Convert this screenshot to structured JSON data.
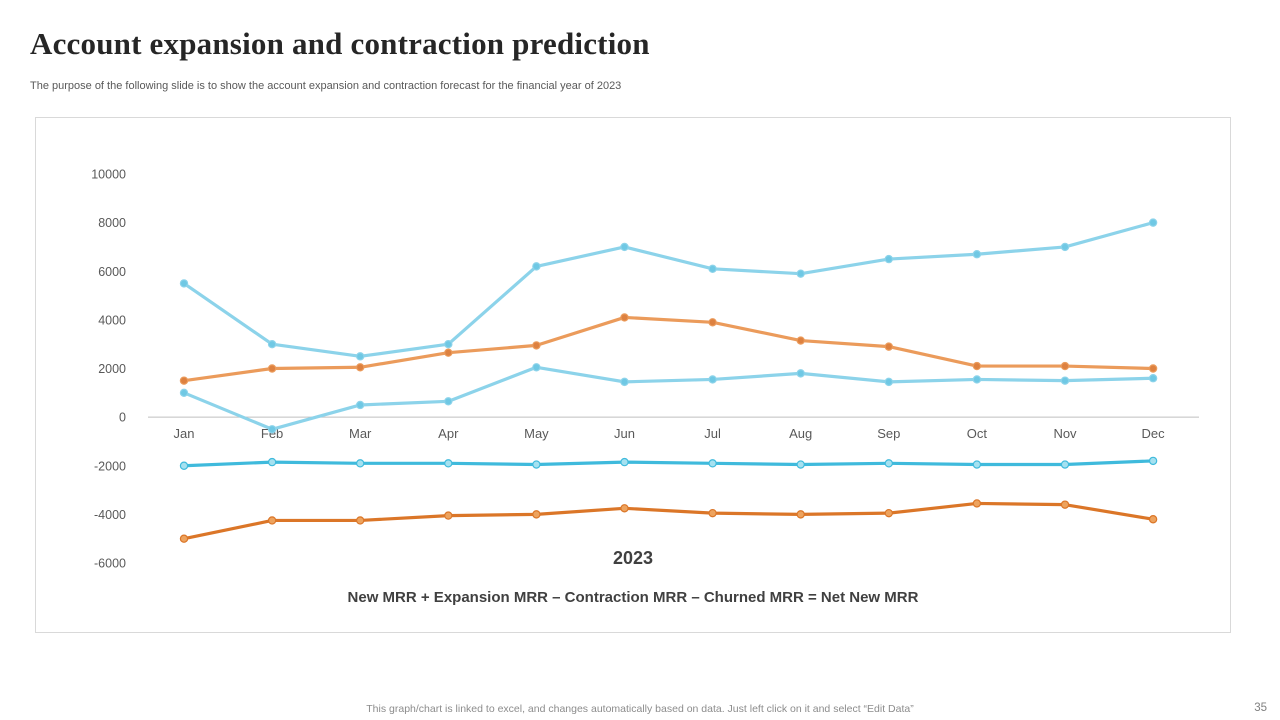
{
  "slide": {
    "title": "Account expansion and contraction prediction",
    "subtitle": "The purpose of the following slide is to show the account expansion and contraction forecast for the financial year of 2023",
    "footer": "This graph/chart is linked to excel, and changes automatically based on data. Just left click on it and select “Edit Data”",
    "page_number": "35"
  },
  "chart_data": {
    "type": "line",
    "axis_title": "2023",
    "caption": "New MRR + Expansion MRR – Contraction MRR – Churned MRR = Net New MRR",
    "categories": [
      "Jan",
      "Feb",
      "Mar",
      "Apr",
      "May",
      "Jun",
      "Jul",
      "Aug",
      "Sep",
      "Oct",
      "Nov",
      "Dec"
    ],
    "yticks": [
      10000,
      8000,
      6000,
      4000,
      2000,
      0,
      -2000,
      -4000,
      -6000
    ],
    "ylim": [
      -6000,
      10000
    ],
    "grid": false,
    "legend": "none",
    "axis_color": "#bfbfbf",
    "series": [
      {
        "name": "light-blue-upper-line",
        "color": "#8cd3ea",
        "marker_fill": "#6fc8e4",
        "marker_stroke": "#8cd3ea",
        "values": [
          5500,
          3000,
          2500,
          3000,
          6200,
          7000,
          6100,
          5900,
          6500,
          6700,
          7000,
          8000
        ]
      },
      {
        "name": "orange-line",
        "color": "#eb9b5b",
        "marker_fill": "#dd8140",
        "marker_stroke": "#eb9b5b",
        "values": [
          1500,
          2000,
          2050,
          2650,
          2950,
          4100,
          3900,
          3150,
          2900,
          2100,
          2100,
          2000
        ]
      },
      {
        "name": "light-blue-lower-line",
        "color": "#8cd3ea",
        "marker_fill": "#6fc8e4",
        "marker_stroke": "#8cd3ea",
        "values": [
          1000,
          -500,
          500,
          650,
          2050,
          1450,
          1550,
          1800,
          1450,
          1550,
          1500,
          1600
        ]
      },
      {
        "name": "teal-line",
        "color": "#3fbadc",
        "marker_fill": "#a5e1f0",
        "marker_stroke": "#3fbadc",
        "values": [
          -2000,
          -1850,
          -1900,
          -1900,
          -1950,
          -1850,
          -1900,
          -1950,
          -1900,
          -1950,
          -1950,
          -1800
        ]
      },
      {
        "name": "dark-orange-line",
        "color": "#db7628",
        "marker_fill": "#eda35e",
        "marker_stroke": "#db7628",
        "values": [
          -5000,
          -4250,
          -4250,
          -4050,
          -4000,
          -3750,
          -3950,
          -4000,
          -3950,
          -3550,
          -3600,
          -4200
        ]
      }
    ]
  }
}
